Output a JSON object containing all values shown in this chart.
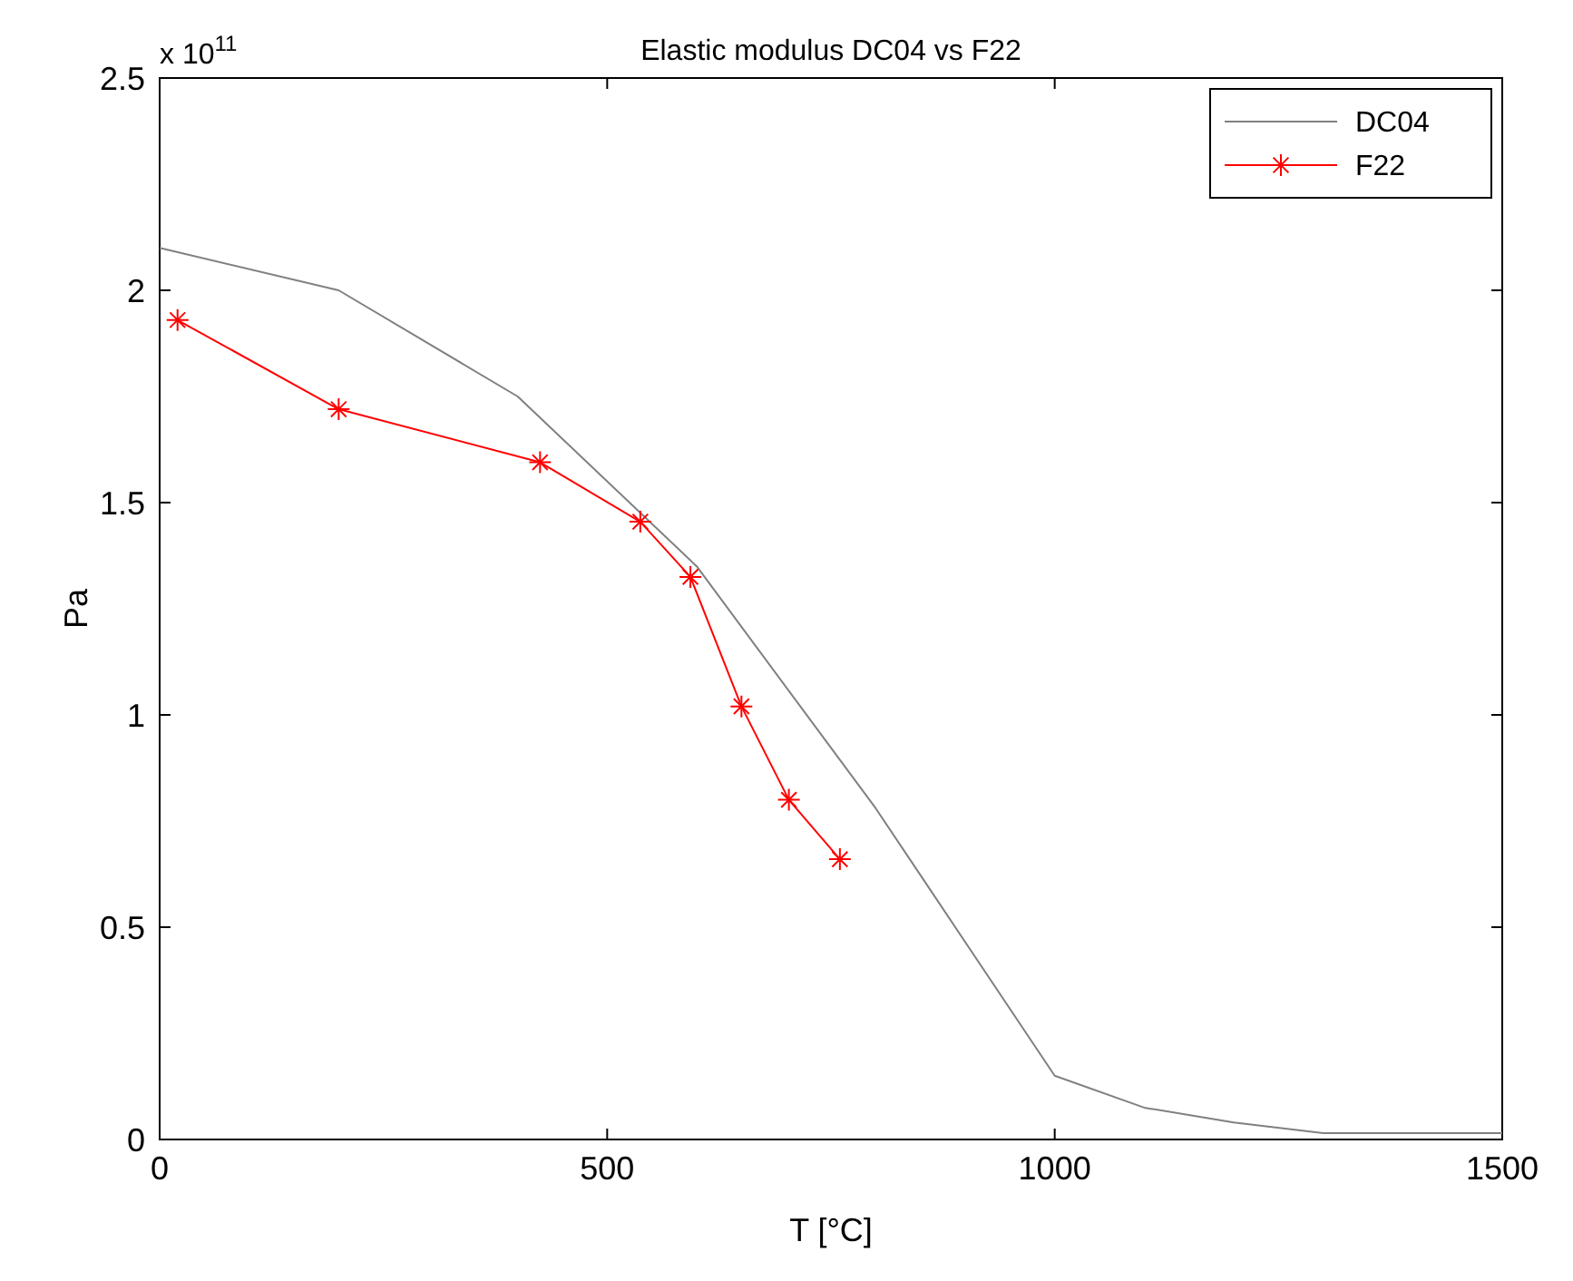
{
  "chart_data": {
    "type": "line",
    "title": "Elastic modulus DC04 vs F22",
    "xlabel": "T [°C]",
    "ylabel": "Pa",
    "annotations": [
      "x 10$^{11}$"
    ],
    "xlim": [
      0,
      1500
    ],
    "xticks": [
      0,
      500,
      1000,
      1500
    ],
    "ylim": [
      0,
      2.5
    ],
    "yticks": [
      0,
      0.5,
      1,
      1.5,
      2,
      2.5
    ],
    "grid": false,
    "legend": "top right",
    "series": [
      {
        "name": "DC04",
        "color": "#808080",
        "marker": "none",
        "x": [
          0,
          200,
          400,
          600,
          800,
          1000,
          1100,
          1200,
          1300,
          1500
        ],
        "values": [
          2.1,
          2.0,
          1.75,
          1.35,
          0.78,
          0.15,
          0.075,
          0.04,
          0.015,
          0.015
        ]
      },
      {
        "name": "F22",
        "color": "#ff0000",
        "marker": "cross",
        "x": [
          20,
          200,
          425,
          537,
          593,
          650,
          703,
          760
        ],
        "values": [
          1.93,
          1.72,
          1.595,
          1.455,
          1.325,
          1.02,
          0.8,
          0.66
        ]
      }
    ]
  }
}
